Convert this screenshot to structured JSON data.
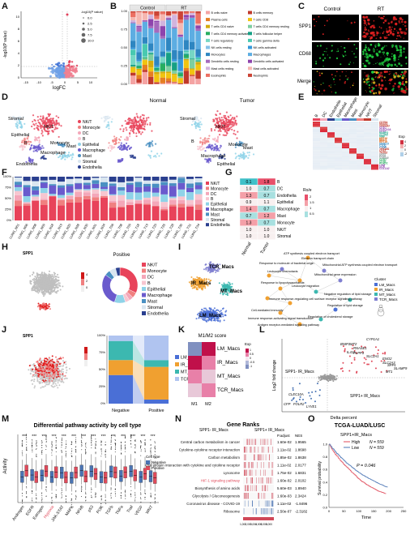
{
  "panels": [
    "A",
    "B",
    "C",
    "D",
    "E",
    "F",
    "G",
    "H",
    "I",
    "J",
    "K",
    "L",
    "M",
    "N",
    "O"
  ],
  "A": {
    "xlabel": "logFC",
    "ylabel": "-log10(P value)",
    "legend_title": "-log10(P value)",
    "legend_values": [
      "0.0",
      "2.5",
      "5.0",
      "7.5",
      "10.0"
    ],
    "xticks": [
      "-15",
      "-10",
      "-5",
      "0",
      "5",
      "10"
    ],
    "yticks": [
      "0",
      "2",
      "4",
      "6",
      "8",
      "10"
    ]
  },
  "B": {
    "groups": [
      "Control",
      "RT"
    ],
    "yticks": [
      "0.00",
      "0.25",
      "0.50",
      "0.75",
      "1.00"
    ],
    "legend": [
      {
        "name": "B cells naive",
        "color": "#f4a3a3"
      },
      {
        "name": "B cells memory",
        "color": "#c0392b"
      },
      {
        "name": "Plasma cells",
        "color": "#e67e22"
      },
      {
        "name": "T cells CD8",
        "color": "#f1c40f"
      },
      {
        "name": "T cells CD4 naive",
        "color": "#d4ac0d"
      },
      {
        "name": "T cells CD4 memory resting",
        "color": "#7dcea0"
      },
      {
        "name": "T cells CD4 memory activated",
        "color": "#27ae60"
      },
      {
        "name": "T cells follicular helper",
        "color": "#16a085"
      },
      {
        "name": "T cells regulatory",
        "color": "#76d7c4"
      },
      {
        "name": "T cells gamma delta",
        "color": "#48c9b0"
      },
      {
        "name": "NK cells resting",
        "color": "#85c1e9"
      },
      {
        "name": "NK cells activated",
        "color": "#3498db"
      },
      {
        "name": "Monocytes",
        "color": "#2e86c1"
      },
      {
        "name": "Macrophages",
        "color": "#5dade2"
      },
      {
        "name": "Dendritic cells resting",
        "color": "#a569bd"
      },
      {
        "name": "Dendritic cells activated",
        "color": "#8e44ad"
      },
      {
        "name": "Mast cells resting",
        "color": "#d2b4de"
      },
      {
        "name": "Mast cells activated",
        "color": "#f5b7b1"
      },
      {
        "name": "Eosinophils",
        "color": "#ec7063"
      },
      {
        "name": "Neutrophils",
        "color": "#cb4335"
      }
    ]
  },
  "C": {
    "cols": [
      "Control",
      "RT"
    ],
    "rows": [
      "SPP1",
      "CD68",
      "Merge"
    ]
  },
  "D": {
    "titles": [
      "",
      "Normal",
      "Tumor"
    ],
    "clusters": [
      "NK/T",
      "Monocyte",
      "DC",
      "B",
      "Epithelial",
      "Macrophage",
      "Mast",
      "Stromal",
      "Endothelia"
    ],
    "colors": {
      "NK/T": "#e8435a",
      "Monocyte": "#f08080",
      "DC": "#f4a7b9",
      "B": "#f7c6d0",
      "Epithelial": "#8fd3e8",
      "Macrophage": "#6a5acd",
      "Mast": "#4a90c2",
      "Stromal": "#d9e6f0",
      "Endothelia": "#2a3f8f"
    }
  },
  "E": {
    "col_labels": [
      "B",
      "DC",
      "Endothelia",
      "Epithelial",
      "Macrophage",
      "Mast",
      "Monocyte",
      "NK/T",
      "Stromal"
    ],
    "genes": [
      "CD79A",
      "MS4A1",
      "VPREB3",
      "CD1C",
      "CLEC10A",
      "CD1E",
      "RAMP2",
      "CLDN5",
      "VWF",
      "KRT18",
      "MUC1",
      "KRT19",
      "MARCO",
      "C1QC",
      "C1QB",
      "TPSAB1",
      "CPA3",
      "TPSB2",
      "G0S2",
      "FCN1",
      "S100A8",
      "CD3D",
      "CD3E",
      "KLRD1",
      "LUM",
      "DCN",
      "COL1A2"
    ],
    "legend_title": "Exp",
    "legend_values": [
      "4",
      "2",
      "0",
      "-2"
    ]
  },
  "F": {
    "samples": [
      "LUNG_N01",
      "LUNG_N06",
      "LUNG_N08",
      "LUNG_N09",
      "LUNG_N18",
      "LUNG_N19",
      "LUNG_N20",
      "LUNG_N28",
      "LUNG_N30",
      "LUNG_N31",
      "LUNG_N34",
      "LUNG_T06",
      "LUNG_T08",
      "LUNG_T09",
      "LUNG_T18",
      "LUNG_T19",
      "LUNG_T20",
      "LUNG_T25",
      "LUNG_T28",
      "LUNG_T30",
      "LUNG_T31",
      "LUNG_T34"
    ],
    "yticks": [
      "0%",
      "25%",
      "50%",
      "75%",
      "100%"
    ]
  },
  "G": {
    "rows": [
      "B",
      "DC",
      "Endothelia",
      "Epithelial",
      "Macrophage",
      "Mast",
      "Monocyte",
      "NK/T",
      "Stromal"
    ],
    "cols": [
      "Normal",
      "Tumor"
    ],
    "values": [
      [
        0.1,
        1.8
      ],
      [
        1.0,
        0.7
      ],
      [
        1.3,
        0.7
      ],
      [
        0.9,
        1.1
      ],
      [
        1.4,
        0.7
      ],
      [
        0.7,
        1.2
      ],
      [
        1.3,
        0.7
      ],
      [
        1.0,
        1.0
      ],
      [
        1.0,
        1.0
      ]
    ],
    "labels": [
      [
        "0.1",
        "1.8"
      ],
      [
        "1.0",
        "0.7"
      ],
      [
        "1.3",
        "0.7"
      ],
      [
        "0.9",
        "1.1"
      ],
      [
        "1.4",
        "0.7"
      ],
      [
        "0.7",
        "1.2"
      ],
      [
        "1.3",
        "0.7"
      ],
      [
        "1.0",
        "1.0"
      ],
      [
        "1.0",
        "1.0"
      ]
    ],
    "legend_title": "Ro/e",
    "legend_values": [
      "2",
      "1.5",
      "1",
      "0.5"
    ]
  },
  "H": {
    "title": "SPP1",
    "donut_title": "Positive",
    "legend": [
      "NK/T",
      "Monocyte",
      "DC",
      "B",
      "Epithelial",
      "Macrophage",
      "Mast",
      "Stromal",
      "Endothelia"
    ],
    "scale_values": [
      "4",
      "2",
      "0"
    ]
  },
  "I": {
    "clusters": [
      "TCR_Macs",
      "IR_Macs",
      "MT_Macs",
      "LM_Macs"
    ],
    "colors": {
      "LM_Macs": "#4a6fd6",
      "IR_Macs": "#f0a030",
      "MT_Macs": "#3cb8b0",
      "TCR_Macs": "#7f7fd0"
    },
    "terms": [
      "ATP synthesis coupled electron transport",
      "Electron transport chain",
      "Response to molecule of bacterial origin",
      "Mitochondrial ATP synthesis coupled electron transport",
      "Leukocyte chemotaxis",
      "Mitochondrial gene expression",
      "Response to lipopolysaccharide",
      "Leukocyte migration",
      "Immune response-regulating cell surface receptor signaling pathway",
      "Negative regulation of lipid storage",
      "Cell-mediated immunity",
      "Regulation of lipid storage",
      "Immune response-activating signal transduction",
      "Regulation of cholesterol storage",
      "Antigen receptor-mediated signaling pathway"
    ],
    "legend_title": "Cluster"
  },
  "J": {
    "title": "SPP1",
    "xcats": [
      "Negative",
      "Positive"
    ],
    "yticks": [
      "0%",
      "25%",
      "50%",
      "75%",
      "100%"
    ],
    "legend": [
      {
        "name": "LM_Macs",
        "color": "#4a6fd6"
      },
      {
        "name": "IR_Macs",
        "color": "#f0a030"
      },
      {
        "name": "MT_Macs",
        "color": "#3cb8b0"
      },
      {
        "name": "TCR_Macs",
        "color": "#b0c4f0"
      }
    ],
    "chart_data": {
      "type": "bar",
      "categories": [
        "Negative",
        "Positive"
      ],
      "series": [
        {
          "name": "LM_Macs",
          "values": [
            0.42,
            0.06
          ]
        },
        {
          "name": "IR_Macs",
          "values": [
            0.22,
            0.48
          ]
        },
        {
          "name": "MT_Macs",
          "values": [
            0.28,
            0.1
          ]
        },
        {
          "name": "TCR_Macs",
          "values": [
            0.08,
            0.36
          ]
        }
      ]
    }
  },
  "K": {
    "title": "M1/M2 score",
    "rows": [
      "LM_Macs",
      "IR_Macs",
      "MT_Macs",
      "TCR_Macs"
    ],
    "cols": [
      "M1",
      "M2"
    ],
    "values": [
      [
        0.2,
        0.9
      ],
      [
        0.8,
        0.5
      ],
      [
        0.6,
        0.3
      ],
      [
        0.3,
        0.7
      ]
    ],
    "legend_title": "Exp",
    "legend_values": [
      "1",
      "0.5",
      "0",
      "-0.5",
      "-1"
    ]
  },
  "L": {
    "xlabel": "Delta percent",
    "ylabel": "Log2 fold change",
    "up_label": "SPP1+ IR_Macs",
    "down_label": "SPP1- IR_Macs",
    "up_genes": [
      "CYP1A1",
      "MT2",
      "RNASE1",
      "PLPP3",
      "SLC2A1",
      "ENO2",
      "SLC2A3",
      "SPP1",
      "SLAMF9",
      "BNIP3",
      "IL411",
      "MT1"
    ],
    "down_genes": [
      "CLEC10A",
      "CFP",
      "FOLR2",
      "LYVE1"
    ]
  },
  "M": {
    "title": "Differential pathway activity by cell type",
    "ylabel": "Activity",
    "pathways": [
      "Androgen",
      "EGFR",
      "Estrogen",
      "Hypoxia",
      "JAK-STAT",
      "MAPK",
      "NFkB",
      "p53",
      "PI3K",
      "TGFb",
      "TNFa",
      "Trail",
      "VEGF",
      "WNT"
    ],
    "sig": "***",
    "legend_title": "Cell type",
    "legend": [
      {
        "name": "Negative",
        "color": "#4a74b4"
      },
      {
        "name": "Positive",
        "color": "#e04a5a"
      }
    ]
  },
  "N": {
    "title": "Gene Ranks",
    "left_label": "SPP1- IR_Macs",
    "right_label": "SPP1+ IR_Macs",
    "header": [
      "P.adjust",
      "NES"
    ],
    "pathways": [
      "Central carbon metabolism in cancer",
      "Cytokine-cytokine receptor interaction",
      "Carbon metabolism",
      "Viral protein interaction with cytokine and cytokine receptor",
      "Lysosome",
      "HIF-1 signaling pathway",
      "Biosynthesis of amino acids",
      "Glycolysis / Gluconeogenesis",
      "Coronavirus disease - COVID-19",
      "Ribosome"
    ],
    "padj": [
      "1.60e-02",
      "1.11e-02",
      "1.85e-02",
      "1.11e-02",
      "1.75e-02",
      "1.60e-02",
      "5.60e-03",
      "1.60e-03",
      "1.11e-02",
      "2.50e-07"
    ],
    "nes": [
      "1.9565",
      "1.8698",
      "1.8638",
      "2.0177",
      "1.6831",
      "2.0102",
      "1.8940",
      "2.3424",
      "-1.8496",
      "-2.3182"
    ],
    "xticks": [
      "1,000",
      "2,000",
      "3,000",
      "4,000",
      "5,000",
      "6,000"
    ]
  },
  "O": {
    "title": "TCGA-LUAD/LUSC",
    "subtitle": "SPP1+IR_Macs",
    "legend": [
      {
        "name": "High",
        "n": "N = 559",
        "color": "#e04a5a"
      },
      {
        "name": "Low",
        "n": "N = 559",
        "color": "#4a74b4"
      }
    ],
    "pvalue": "P = 0.046",
    "xlabel": "Time",
    "ylabel": "Survival probability",
    "xticks": [
      "0",
      "50",
      "100",
      "150",
      "200",
      "250"
    ],
    "yticks": [
      "0.0",
      "0.2",
      "0.4",
      "0.6",
      "0.8",
      "1.0"
    ]
  }
}
